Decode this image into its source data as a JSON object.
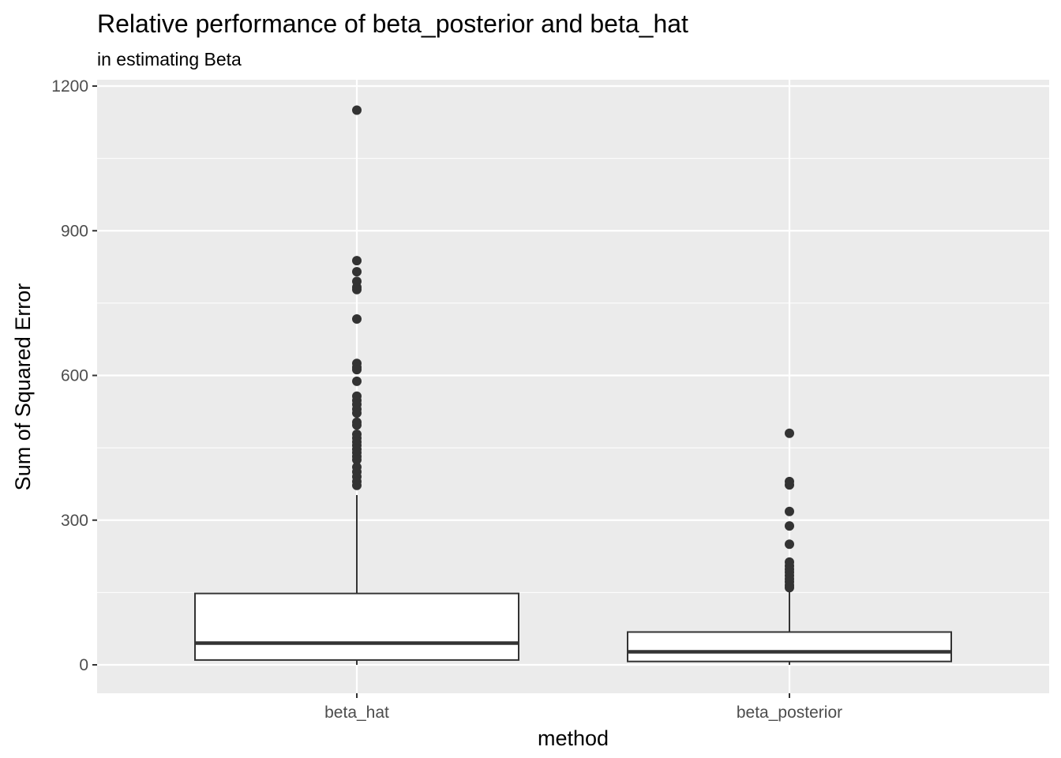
{
  "chart_data": {
    "type": "box",
    "title": "Relative performance of beta_posterior and beta_hat",
    "subtitle": "in estimating Beta",
    "xlabel": "method",
    "ylabel": "Sum of Squared Error",
    "categories": [
      "beta_hat",
      "beta_posterior"
    ],
    "ylim": [
      -60,
      1205
    ],
    "yticks": [
      0,
      300,
      600,
      900,
      1200
    ],
    "grid": true,
    "boxes": [
      {
        "category": "beta_hat",
        "lower_whisker": 0,
        "q1": 10,
        "median": 45,
        "q3": 148,
        "upper_whisker": 352,
        "outliers": [
          1150,
          838,
          815,
          795,
          783,
          778,
          717,
          625,
          617,
          612,
          588,
          557,
          548,
          540,
          530,
          522,
          503,
          497,
          478,
          470,
          462,
          455,
          447,
          440,
          432,
          425,
          410,
          400,
          390,
          380,
          372
        ]
      },
      {
        "category": "beta_posterior",
        "lower_whisker": 0,
        "q1": 7,
        "median": 27,
        "q3": 68,
        "upper_whisker": 158,
        "outliers": [
          480,
          380,
          373,
          318,
          288,
          250,
          213,
          205,
          198,
          192,
          185,
          178,
          172,
          165,
          160
        ]
      }
    ],
    "colors": {
      "panel": "#ebebeb",
      "grid": "#ffffff",
      "box_fill": "#ffffff",
      "box_stroke": "#333333",
      "point": "#333333",
      "tick": "#4d4d4d"
    }
  }
}
